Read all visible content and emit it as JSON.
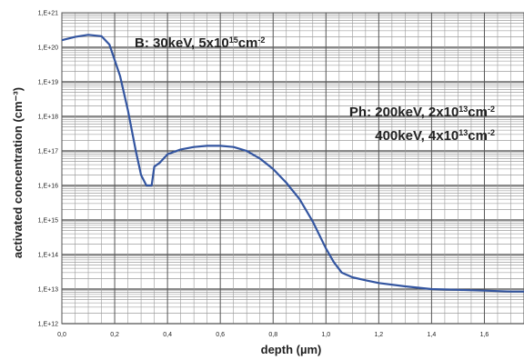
{
  "chart_data": {
    "type": "line",
    "title": "",
    "xlabel": "depth (µm)",
    "ylabel": "activated concentration (cm⁻³)",
    "xlim": [
      0.0,
      1.75
    ],
    "ylim": [
      1000000000000.0,
      1e+21
    ],
    "yscale": "log",
    "grid": true,
    "x_ticks": [
      "0,0",
      "0,2",
      "0,4",
      "0,6",
      "0,8",
      "1,0",
      "1,2",
      "1,4",
      "1,6"
    ],
    "y_ticks": [
      "1,E+12",
      "1,E+13",
      "1,E+14",
      "1,E+15",
      "1,E+16",
      "1,E+17",
      "1,E+18",
      "1,E+19",
      "1,E+20",
      "1,E+21"
    ],
    "annotations": [
      {
        "id": "boron",
        "segments": [
          {
            "t": "B: 30keV, 5x10",
            "s": "n"
          },
          {
            "t": "15",
            "s": "sup"
          },
          {
            "t": "cm",
            "s": "n"
          },
          {
            "t": "-2",
            "s": "sup"
          }
        ]
      },
      {
        "id": "ph1",
        "segments": [
          {
            "t": "Ph: 200keV, 2x10",
            "s": "n"
          },
          {
            "t": "13",
            "s": "sup"
          },
          {
            "t": "cm",
            "s": "n"
          },
          {
            "t": "-2",
            "s": "sup"
          }
        ]
      },
      {
        "id": "ph2",
        "segments": [
          {
            "t": "400keV, 4x10",
            "s": "n"
          },
          {
            "t": "13",
            "s": "sup"
          },
          {
            "t": "cm",
            "s": "n"
          },
          {
            "t": "-2",
            "s": "sup"
          }
        ]
      }
    ],
    "series": [
      {
        "color": "#3355a0",
        "x": [
          0.0,
          0.05,
          0.1,
          0.15,
          0.18,
          0.22,
          0.25,
          0.28,
          0.3,
          0.32,
          0.34,
          0.35,
          0.37,
          0.4,
          0.45,
          0.5,
          0.55,
          0.6,
          0.65,
          0.7,
          0.75,
          0.8,
          0.85,
          0.9,
          0.95,
          1.0,
          1.03,
          1.06,
          1.1,
          1.15,
          1.2,
          1.3,
          1.4,
          1.5,
          1.6,
          1.7,
          1.75
        ],
        "y": [
          1.6e+20,
          2e+20,
          2.3e+20,
          2.1e+20,
          1.2e+20,
          1.5e+19,
          1.5e+18,
          1e+17,
          2e+16,
          1e+16,
          1e+16,
          3.5e+16,
          4.5e+16,
          8e+16,
          1.1e+17,
          1.3e+17,
          1.4e+17,
          1.4e+17,
          1.3e+17,
          1e+17,
          6e+16,
          3e+16,
          1.2e+16,
          4000000000000000.0,
          900000000000000.0,
          150000000000000.0,
          60000000000000.0,
          30000000000000.0,
          22000000000000.0,
          18000000000000.0,
          15000000000000.0,
          12000000000000.0,
          10000000000000.0,
          9500000000000.0,
          9000000000000.0,
          8500000000000.0,
          8500000000000.0
        ]
      }
    ]
  }
}
